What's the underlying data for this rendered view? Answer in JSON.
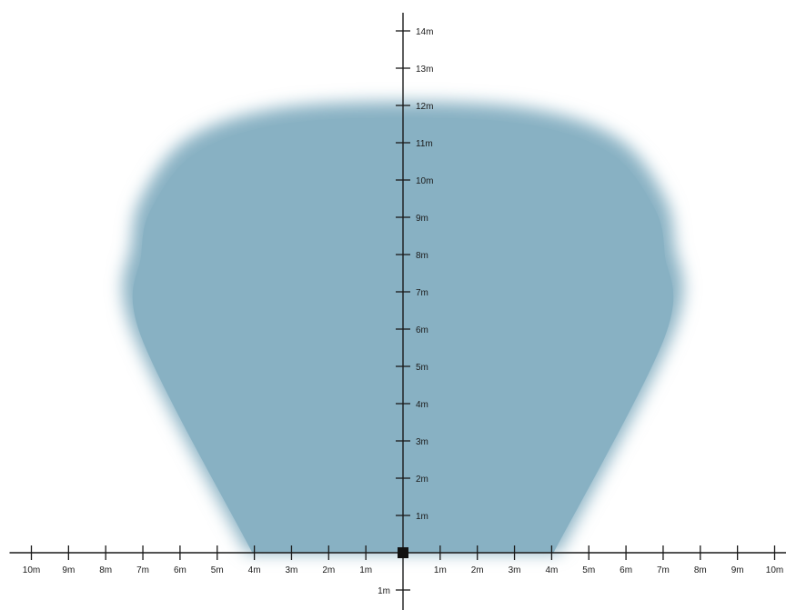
{
  "coverage_zone": {
    "color": "#88b1c3",
    "shape_points_m": [
      [
        -4.2,
        0
      ],
      [
        -7.3,
        6
      ],
      [
        -7.3,
        8.3
      ],
      [
        -7.0,
        9.6
      ],
      [
        -5.8,
        11.1
      ],
      [
        -3.5,
        11.9
      ],
      [
        0,
        12.1
      ],
      [
        3.5,
        11.9
      ],
      [
        5.8,
        11.1
      ],
      [
        7.0,
        9.6
      ],
      [
        7.3,
        8.3
      ],
      [
        7.3,
        6
      ],
      [
        4.2,
        0
      ]
    ]
  },
  "axes": {
    "color": "#1a1a1a",
    "x_range_m": [
      -10,
      10
    ],
    "y_range_m": [
      -1,
      14
    ],
    "unit": "m"
  },
  "x_ticks": [
    {
      "value": -10,
      "label": "10m"
    },
    {
      "value": -9,
      "label": "9m"
    },
    {
      "value": -8,
      "label": "8m"
    },
    {
      "value": -7,
      "label": "7m"
    },
    {
      "value": -6,
      "label": "6m"
    },
    {
      "value": -5,
      "label": "5m"
    },
    {
      "value": -4,
      "label": "4m"
    },
    {
      "value": -3,
      "label": "3m"
    },
    {
      "value": -2,
      "label": "2m"
    },
    {
      "value": -1,
      "label": "1m"
    },
    {
      "value": 1,
      "label": "1m"
    },
    {
      "value": 2,
      "label": "2m"
    },
    {
      "value": 3,
      "label": "3m"
    },
    {
      "value": 4,
      "label": "4m"
    },
    {
      "value": 5,
      "label": "5m"
    },
    {
      "value": 6,
      "label": "6m"
    },
    {
      "value": 7,
      "label": "7m"
    },
    {
      "value": 8,
      "label": "8m"
    },
    {
      "value": 9,
      "label": "9m"
    },
    {
      "value": 10,
      "label": "10m"
    }
  ],
  "y_ticks": [
    {
      "value": 1,
      "label": "1m"
    },
    {
      "value": 2,
      "label": "2m"
    },
    {
      "value": 3,
      "label": "3m"
    },
    {
      "value": 4,
      "label": "4m"
    },
    {
      "value": 5,
      "label": "5m"
    },
    {
      "value": 6,
      "label": "6m"
    },
    {
      "value": 7,
      "label": "7m"
    },
    {
      "value": 8,
      "label": "8m"
    },
    {
      "value": 9,
      "label": "9m"
    },
    {
      "value": 10,
      "label": "10m"
    },
    {
      "value": 11,
      "label": "11m"
    },
    {
      "value": 12,
      "label": "12m"
    },
    {
      "value": 13,
      "label": "13m"
    },
    {
      "value": 14,
      "label": "14m"
    },
    {
      "value": -1,
      "label": "1m"
    }
  ],
  "sensor": {
    "position_m": [
      0,
      0
    ],
    "color": "#111111"
  }
}
